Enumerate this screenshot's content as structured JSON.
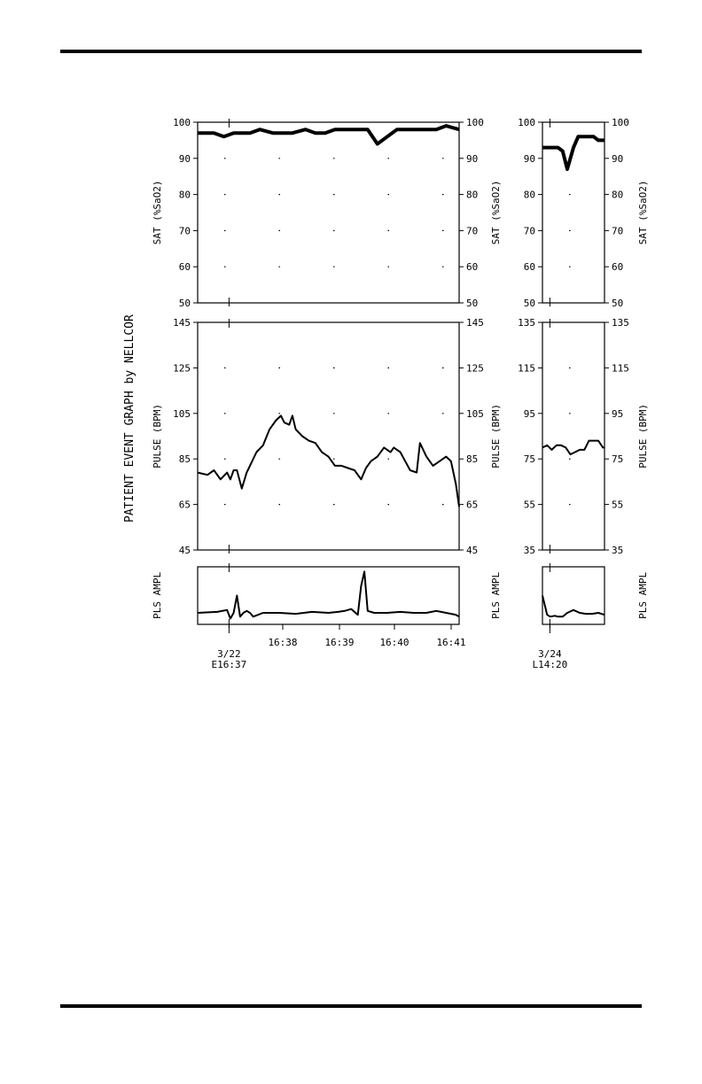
{
  "page": {
    "graph_title": "PATIENT EVENT GRAPH  by NELLCOR"
  },
  "chart_data": [
    {
      "type": "line",
      "panel": "left-sat",
      "ylabel": "SAT (%SaO2)",
      "ylim": [
        50,
        100
      ],
      "ticks": [
        "100",
        "90",
        "80",
        "70",
        "60",
        "50"
      ],
      "ticks_right": [
        "100",
        "90",
        "80",
        "70",
        "60",
        "50"
      ],
      "x": [
        0,
        0.5,
        0.8,
        1.1,
        1.4,
        1.6,
        1.9,
        2.3,
        2.6,
        2.9,
        3.3,
        3.6,
        3.9,
        4.2,
        4.6,
        4.9,
        5.2,
        5.5,
        5.8,
        6.1,
        6.4,
        6.7,
        7.0,
        7.3,
        7.6,
        8.0
      ],
      "values": [
        97,
        97,
        96,
        97,
        97,
        97,
        98,
        97,
        97,
        97,
        98,
        97,
        97,
        98,
        98,
        98,
        98,
        94,
        96,
        98,
        98,
        98,
        98,
        98,
        99,
        98
      ],
      "xlim": [
        0,
        8
      ],
      "grid": true
    },
    {
      "type": "line",
      "panel": "left-pulse",
      "ylabel": "PULSE (BPM)",
      "ylim": [
        45,
        145
      ],
      "ticks": [
        "145",
        "125",
        "105",
        "85",
        "65",
        "45"
      ],
      "ticks_right": [
        "145",
        "125",
        "105",
        "85",
        "65",
        "45"
      ],
      "x": [
        0,
        0.3,
        0.5,
        0.7,
        0.9,
        1.0,
        1.1,
        1.2,
        1.35,
        1.5,
        1.6,
        1.8,
        2.0,
        2.2,
        2.4,
        2.55,
        2.65,
        2.8,
        2.9,
        3.0,
        3.2,
        3.4,
        3.6,
        3.8,
        4.0,
        4.2,
        4.4,
        4.6,
        4.8,
        5.0,
        5.15,
        5.3,
        5.5,
        5.7,
        5.9,
        6.0,
        6.2,
        6.35,
        6.5,
        6.7,
        6.8,
        7.0,
        7.2,
        7.4,
        7.6,
        7.75,
        7.9,
        8.0
      ],
      "values": [
        79,
        78,
        80,
        76,
        79,
        76,
        80,
        80,
        72,
        79,
        82,
        88,
        91,
        98,
        102,
        104,
        101,
        100,
        104,
        98,
        95,
        93,
        92,
        88,
        86,
        82,
        82,
        81,
        80,
        76,
        81,
        84,
        86,
        90,
        88,
        90,
        88,
        84,
        80,
        79,
        92,
        86,
        82,
        84,
        86,
        84,
        74,
        64
      ],
      "xlim": [
        0,
        8
      ],
      "grid": true
    },
    {
      "type": "line",
      "panel": "left-pls-ampl",
      "ylabel": "PLS AMPL",
      "x": [
        0,
        0.6,
        0.9,
        1.0,
        1.1,
        1.2,
        1.3,
        1.4,
        1.5,
        1.6,
        1.7,
        2.0,
        2.5,
        3.0,
        3.5,
        4.0,
        4.3,
        4.5,
        4.7,
        4.9,
        5.0,
        5.1,
        5.2,
        5.4,
        5.8,
        6.2,
        6.6,
        7.0,
        7.3,
        7.6,
        7.9,
        8.0
      ],
      "values": [
        12,
        13,
        15,
        6,
        12,
        30,
        8,
        12,
        14,
        12,
        8,
        12,
        12,
        11,
        13,
        12,
        13,
        14,
        16,
        10,
        40,
        55,
        14,
        12,
        12,
        13,
        12,
        12,
        14,
        12,
        10,
        8
      ],
      "ylim": [
        0,
        60
      ],
      "xlim": [
        0,
        8
      ],
      "x_ticks": [
        "16:38",
        "16:39",
        "16:40",
        "16:41"
      ],
      "start_label": [
        "3/22",
        "E16:37"
      ]
    },
    {
      "type": "line",
      "panel": "right-sat",
      "ylabel": "SAT (%SaO2)",
      "ylim": [
        50,
        100
      ],
      "ticks": [
        "100",
        "90",
        "80",
        "70",
        "60",
        "50"
      ],
      "ticks_right": [
        "100",
        "90",
        "80",
        "70",
        "60",
        "50"
      ],
      "x": [
        0,
        0.5,
        1.0,
        1.3,
        1.6,
        2.0,
        2.3,
        2.6,
        3.0,
        3.3,
        3.6,
        4.0
      ],
      "values": [
        93,
        93,
        93,
        92,
        87,
        93,
        96,
        96,
        96,
        96,
        95,
        95
      ],
      "xlim": [
        0,
        4
      ],
      "grid": true
    },
    {
      "type": "line",
      "panel": "right-pulse",
      "ylabel": "PULSE (BPM)",
      "ylim": [
        35,
        135
      ],
      "ticks": [
        "135",
        "115",
        "95",
        "75",
        "55",
        "35"
      ],
      "ticks_right": [
        "135",
        "115",
        "95",
        "75",
        "55",
        "35"
      ],
      "x": [
        0,
        0.3,
        0.6,
        0.9,
        1.2,
        1.5,
        1.8,
        2.1,
        2.4,
        2.7,
        3.0,
        3.3,
        3.6,
        3.9,
        4.0
      ],
      "values": [
        80,
        81,
        79,
        81,
        81,
        80,
        77,
        78,
        79,
        79,
        83,
        83,
        83,
        80,
        80
      ],
      "xlim": [
        0,
        4
      ],
      "grid": true
    },
    {
      "type": "line",
      "panel": "right-pls-ampl",
      "ylabel": "PLS AMPL",
      "x": [
        0,
        0.3,
        0.5,
        0.8,
        1.0,
        1.3,
        1.6,
        2.0,
        2.4,
        2.8,
        3.2,
        3.6,
        4.0
      ],
      "values": [
        30,
        10,
        8,
        9,
        8,
        8,
        12,
        15,
        12,
        11,
        11,
        12,
        10
      ],
      "ylim": [
        0,
        60
      ],
      "xlim": [
        0,
        4
      ],
      "x_ticks": [],
      "start_label": [
        "3/24",
        "L14:20"
      ]
    }
  ]
}
